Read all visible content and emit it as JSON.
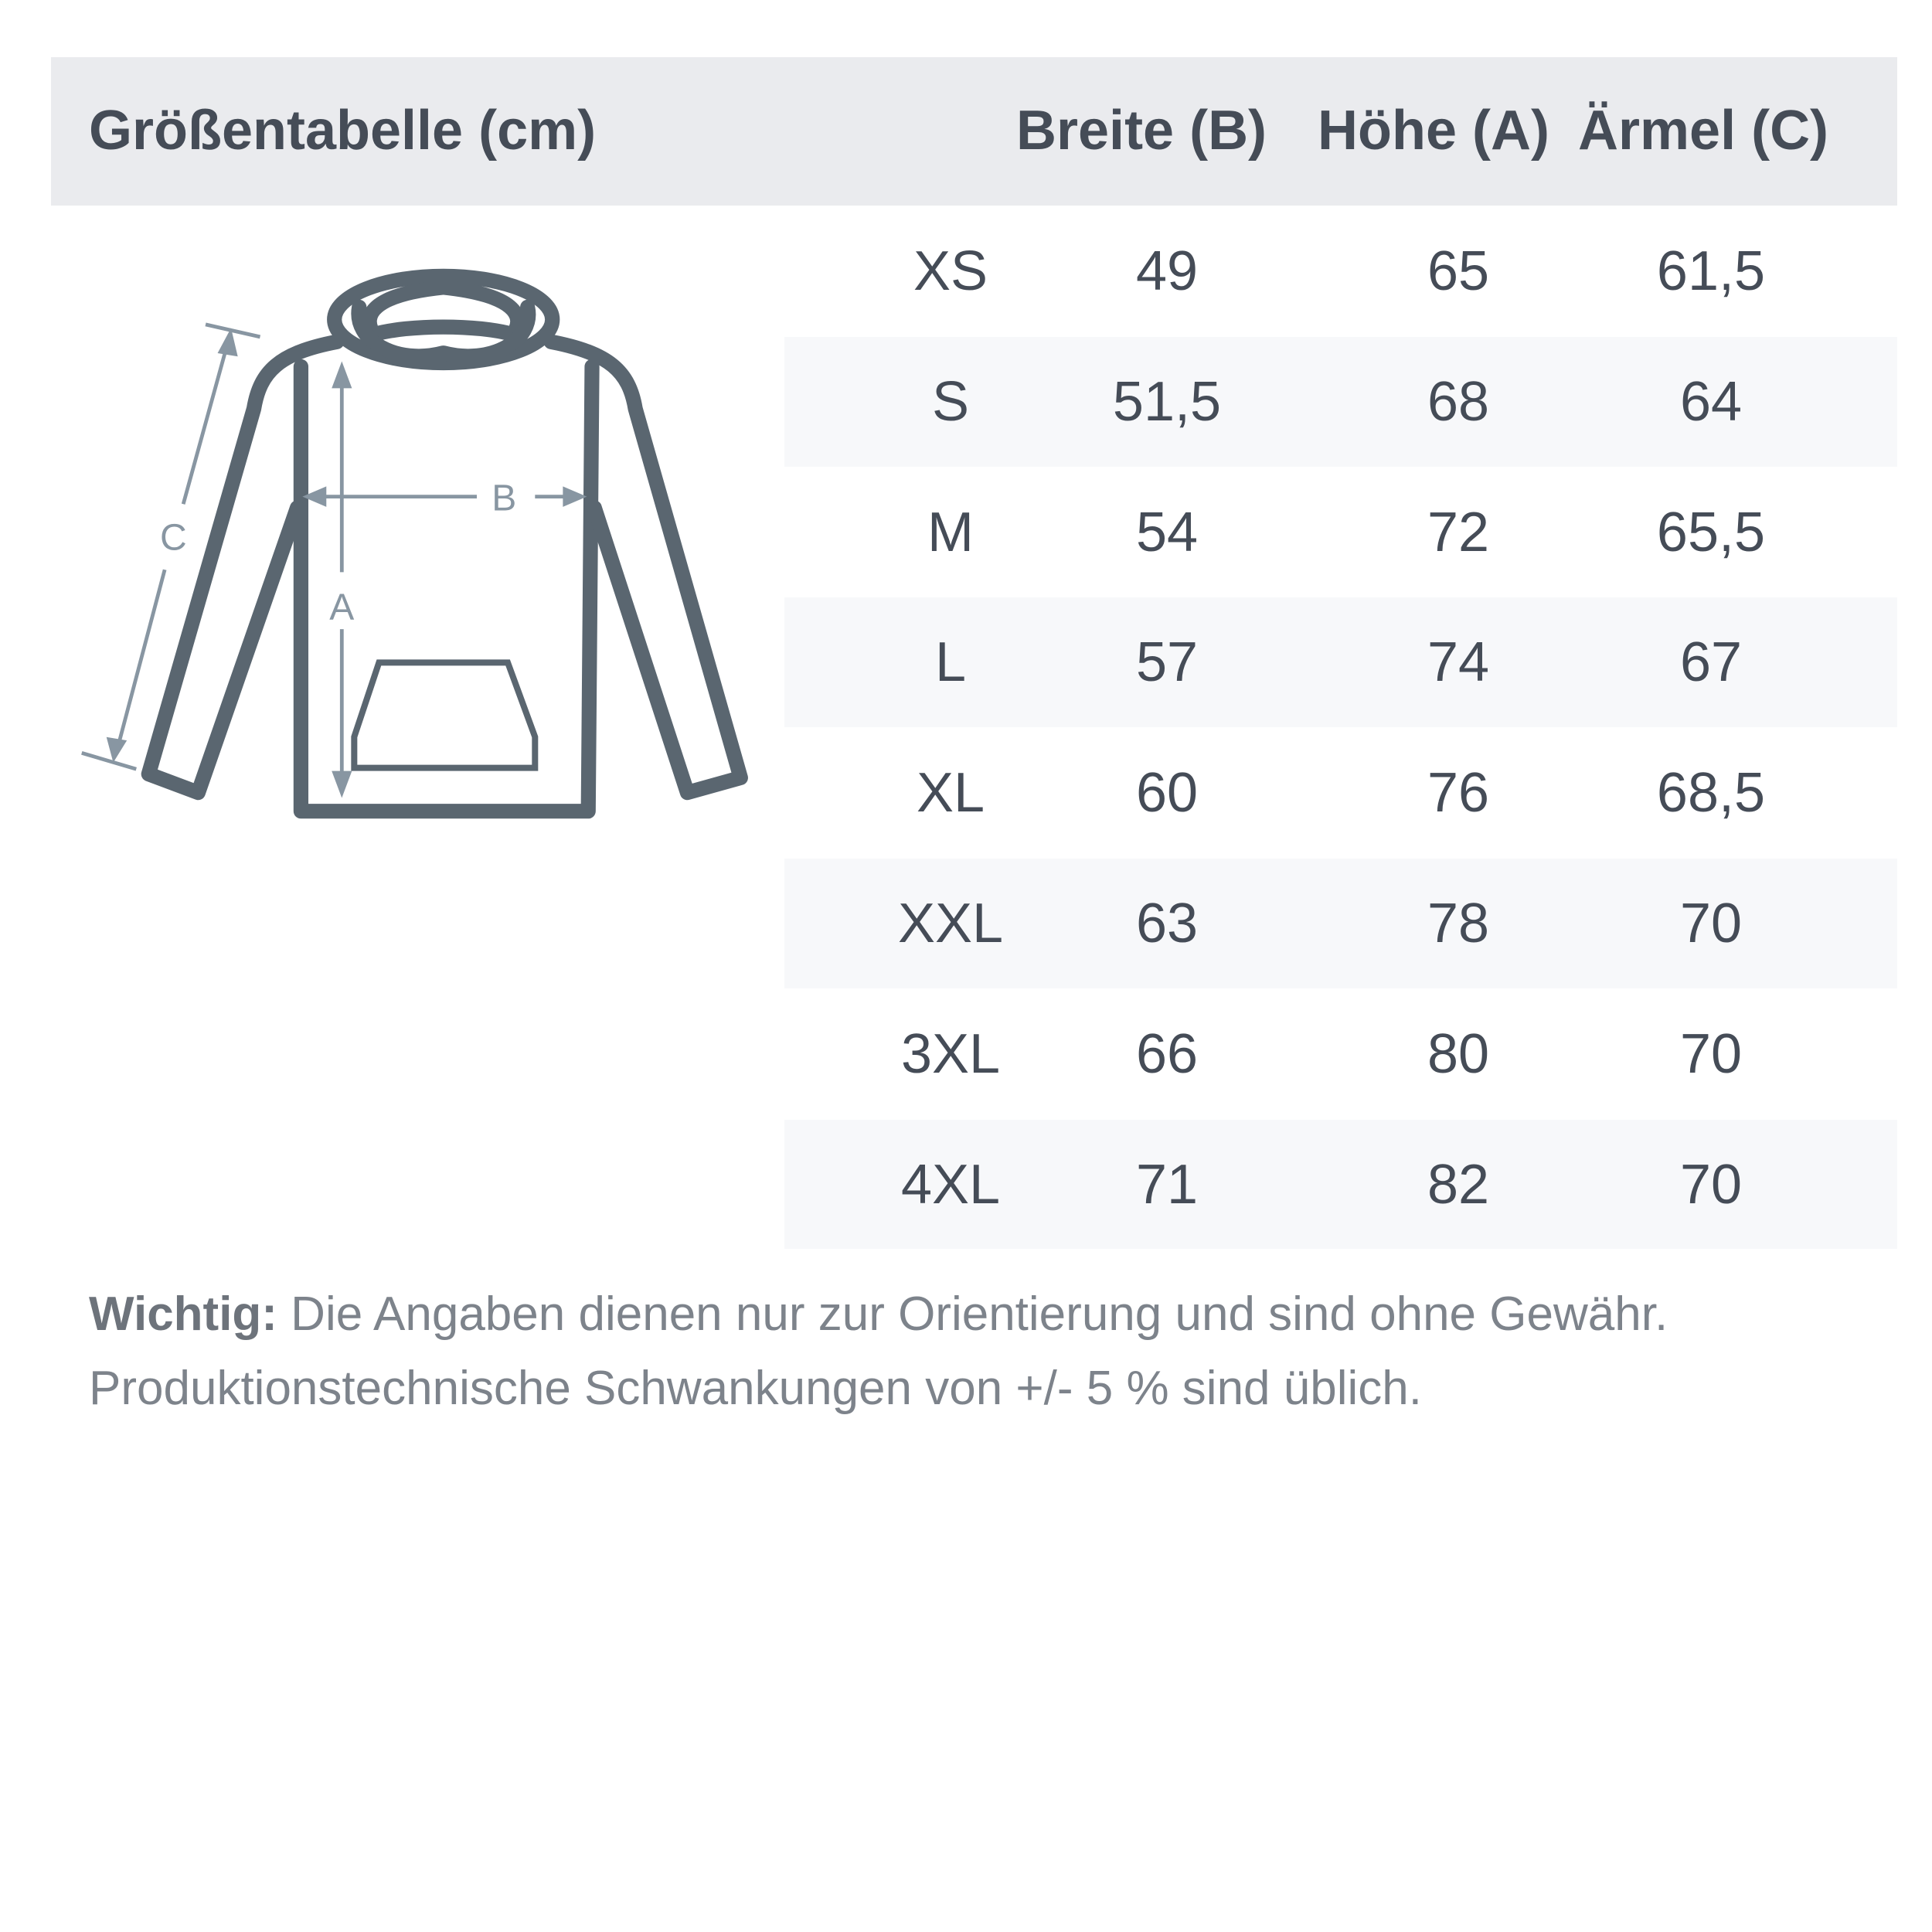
{
  "header": {
    "title": "Größentabelle (cm)",
    "columns": [
      "Breite (B)",
      "Höhe (A)",
      "Ärmel (C)"
    ]
  },
  "diagram": {
    "labels": {
      "a": "A",
      "b": "B",
      "c": "C"
    },
    "outline_color": "#5a6670",
    "arrow_color": "#8896a2"
  },
  "rows": [
    {
      "size": "XS",
      "b": "49",
      "a": "65",
      "c": "61,5"
    },
    {
      "size": "S",
      "b": "51,5",
      "a": "68",
      "c": "64"
    },
    {
      "size": "M",
      "b": "54",
      "a": "72",
      "c": "65,5"
    },
    {
      "size": "L",
      "b": "57",
      "a": "74",
      "c": "67"
    },
    {
      "size": "XL",
      "b": "60",
      "a": "76",
      "c": "68,5"
    },
    {
      "size": "XXL",
      "b": "63",
      "a": "78",
      "c": "70"
    },
    {
      "size": "3XL",
      "b": "66",
      "a": "80",
      "c": "70"
    },
    {
      "size": "4XL",
      "b": "71",
      "a": "82",
      "c": "70"
    }
  ],
  "note": {
    "bold": "Wichtig:",
    "line1": " Die Angaben dienen nur zur Orientierung und sind ohne Gewähr.",
    "line2": "Produktionstechnische Schwankungen von +/- 5 % sind üblich."
  }
}
